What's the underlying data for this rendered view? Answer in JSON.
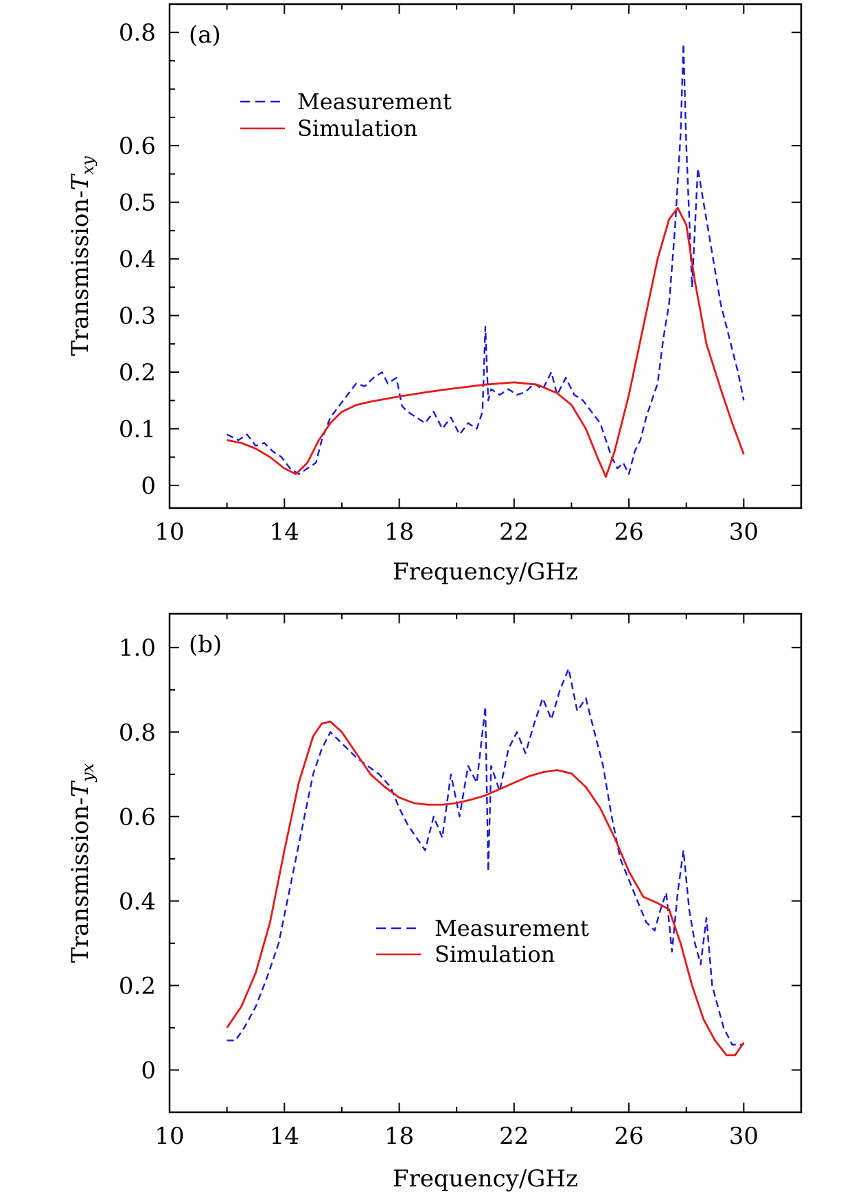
{
  "chart_data": [
    {
      "type": "line",
      "panel_label": "(a)",
      "xlabel": "Frequency/GHz",
      "ylabel_prefix": "Transmission-",
      "ylabel_symbol": "T",
      "ylabel_subscript": "xy",
      "xlim": [
        10,
        32
      ],
      "ylim": [
        -0.04,
        0.85
      ],
      "xticks": [
        10,
        14,
        18,
        22,
        26,
        30
      ],
      "xtick_labels": [
        "10",
        "14",
        "18",
        "22",
        "26",
        "30"
      ],
      "yticks": [
        0,
        0.1,
        0.2,
        0.3,
        0.4,
        0.5,
        0.6,
        0.8
      ],
      "ytick_labels": [
        "0",
        "0.1",
        "0.2",
        "0.3",
        "0.4",
        "0.5",
        "0.6",
        "0.8"
      ],
      "legend_position": "top-left",
      "series": [
        {
          "name": "Measurement",
          "style": "dashed",
          "color": "#1a1adb",
          "x": [
            12.0,
            12.4,
            12.7,
            13.0,
            13.3,
            13.6,
            13.9,
            14.2,
            14.5,
            14.8,
            15.1,
            15.3,
            15.6,
            15.9,
            16.2,
            16.5,
            16.8,
            17.1,
            17.4,
            17.6,
            17.9,
            18.1,
            18.3,
            18.6,
            18.9,
            19.2,
            19.5,
            19.8,
            20.1,
            20.4,
            20.7,
            20.9,
            21.0,
            21.1,
            21.2,
            21.5,
            21.8,
            22.1,
            22.4,
            22.7,
            23.0,
            23.3,
            23.5,
            23.8,
            24.1,
            24.4,
            24.7,
            25.0,
            25.2,
            25.4,
            25.6,
            25.8,
            26.0,
            26.2,
            26.4,
            26.6,
            26.8,
            27.0,
            27.2,
            27.4,
            27.6,
            27.8,
            27.9,
            28.0,
            28.2,
            28.4,
            28.6,
            28.8,
            29.0,
            29.2,
            29.4,
            29.6,
            29.8,
            30.0
          ],
          "y": [
            0.09,
            0.08,
            0.09,
            0.07,
            0.075,
            0.06,
            0.05,
            0.03,
            0.02,
            0.03,
            0.04,
            0.08,
            0.12,
            0.14,
            0.16,
            0.18,
            0.175,
            0.19,
            0.2,
            0.18,
            0.19,
            0.14,
            0.13,
            0.12,
            0.11,
            0.13,
            0.1,
            0.12,
            0.09,
            0.11,
            0.1,
            0.13,
            0.28,
            0.15,
            0.17,
            0.16,
            0.17,
            0.16,
            0.165,
            0.18,
            0.17,
            0.2,
            0.16,
            0.19,
            0.16,
            0.15,
            0.13,
            0.11,
            0.08,
            0.05,
            0.03,
            0.04,
            0.02,
            0.06,
            0.08,
            0.12,
            0.15,
            0.18,
            0.26,
            0.32,
            0.45,
            0.62,
            0.78,
            0.6,
            0.35,
            0.56,
            0.5,
            0.44,
            0.38,
            0.32,
            0.28,
            0.24,
            0.2,
            0.15
          ]
        },
        {
          "name": "Simulation",
          "style": "solid",
          "color": "#e41a1a",
          "x": [
            12.0,
            12.5,
            13.0,
            13.5,
            14.0,
            14.4,
            14.8,
            15.2,
            15.6,
            16.0,
            16.5,
            17.0,
            18.0,
            19.0,
            20.0,
            21.0,
            22.0,
            22.8,
            23.5,
            24.0,
            24.5,
            24.9,
            25.2,
            25.5,
            26.0,
            26.5,
            27.0,
            27.4,
            27.7,
            28.0,
            28.3,
            28.7,
            29.2,
            29.6,
            30.0
          ],
          "y": [
            0.08,
            0.075,
            0.065,
            0.05,
            0.03,
            0.02,
            0.04,
            0.08,
            0.11,
            0.13,
            0.142,
            0.148,
            0.157,
            0.165,
            0.172,
            0.178,
            0.182,
            0.178,
            0.163,
            0.142,
            0.1,
            0.05,
            0.015,
            0.06,
            0.16,
            0.28,
            0.4,
            0.47,
            0.49,
            0.46,
            0.36,
            0.25,
            0.17,
            0.11,
            0.055
          ]
        }
      ]
    },
    {
      "type": "line",
      "panel_label": "(b)",
      "xlabel": "Frequency/GHz",
      "ylabel_prefix": "Transmission-",
      "ylabel_symbol": "T",
      "ylabel_subscript": "yx",
      "xlim": [
        10,
        32
      ],
      "ylim": [
        -0.1,
        1.08
      ],
      "xticks": [
        10,
        14,
        18,
        22,
        26,
        30
      ],
      "xtick_labels": [
        "10",
        "14",
        "18",
        "22",
        "26",
        "30"
      ],
      "yticks": [
        0,
        0.2,
        0.4,
        0.6,
        0.8,
        1.0
      ],
      "ytick_labels": [
        "0",
        "0.2",
        "0.4",
        "0.6",
        "0.8",
        "1.0"
      ],
      "legend_position": "lower-center",
      "series": [
        {
          "name": "Measurement",
          "style": "dashed",
          "color": "#1a1adb",
          "x": [
            12.0,
            12.3,
            12.6,
            13.0,
            13.4,
            13.8,
            14.1,
            14.4,
            14.7,
            15.0,
            15.3,
            15.6,
            15.9,
            16.2,
            16.5,
            16.9,
            17.3,
            17.7,
            18.0,
            18.3,
            18.6,
            18.9,
            19.2,
            19.5,
            19.8,
            20.1,
            20.4,
            20.7,
            21.0,
            21.1,
            21.2,
            21.5,
            21.8,
            22.1,
            22.4,
            22.7,
            23.0,
            23.3,
            23.6,
            23.9,
            24.2,
            24.5,
            24.8,
            25.1,
            25.4,
            25.7,
            26.0,
            26.3,
            26.6,
            26.9,
            27.1,
            27.3,
            27.5,
            27.7,
            27.9,
            28.1,
            28.3,
            28.5,
            28.7,
            28.9,
            29.1,
            29.3,
            29.6,
            30.0
          ],
          "y": [
            0.07,
            0.07,
            0.1,
            0.15,
            0.22,
            0.3,
            0.4,
            0.5,
            0.6,
            0.7,
            0.76,
            0.8,
            0.78,
            0.76,
            0.74,
            0.72,
            0.7,
            0.67,
            0.62,
            0.58,
            0.55,
            0.52,
            0.6,
            0.55,
            0.7,
            0.6,
            0.72,
            0.68,
            0.86,
            0.47,
            0.72,
            0.66,
            0.76,
            0.8,
            0.75,
            0.82,
            0.88,
            0.83,
            0.9,
            0.95,
            0.85,
            0.88,
            0.8,
            0.72,
            0.6,
            0.5,
            0.45,
            0.4,
            0.35,
            0.33,
            0.38,
            0.42,
            0.28,
            0.42,
            0.52,
            0.38,
            0.3,
            0.25,
            0.36,
            0.2,
            0.15,
            0.1,
            0.06,
            0.06
          ]
        },
        {
          "name": "Simulation",
          "style": "solid",
          "color": "#e41a1a",
          "x": [
            12.0,
            12.5,
            13.0,
            13.5,
            14.0,
            14.5,
            15.0,
            15.3,
            15.6,
            16.0,
            16.5,
            17.0,
            17.5,
            18.0,
            18.5,
            19.0,
            19.5,
            20.0,
            20.5,
            21.0,
            21.5,
            22.0,
            22.5,
            23.0,
            23.5,
            24.0,
            24.5,
            25.0,
            25.5,
            26.0,
            26.5,
            27.0,
            27.4,
            27.8,
            28.2,
            28.6,
            29.0,
            29.4,
            29.7,
            30.0
          ],
          "y": [
            0.1,
            0.15,
            0.23,
            0.35,
            0.52,
            0.68,
            0.79,
            0.82,
            0.825,
            0.8,
            0.75,
            0.7,
            0.67,
            0.645,
            0.632,
            0.628,
            0.628,
            0.632,
            0.64,
            0.65,
            0.665,
            0.68,
            0.695,
            0.705,
            0.71,
            0.702,
            0.67,
            0.62,
            0.55,
            0.47,
            0.41,
            0.395,
            0.38,
            0.3,
            0.2,
            0.12,
            0.07,
            0.035,
            0.035,
            0.065
          ]
        }
      ]
    }
  ]
}
